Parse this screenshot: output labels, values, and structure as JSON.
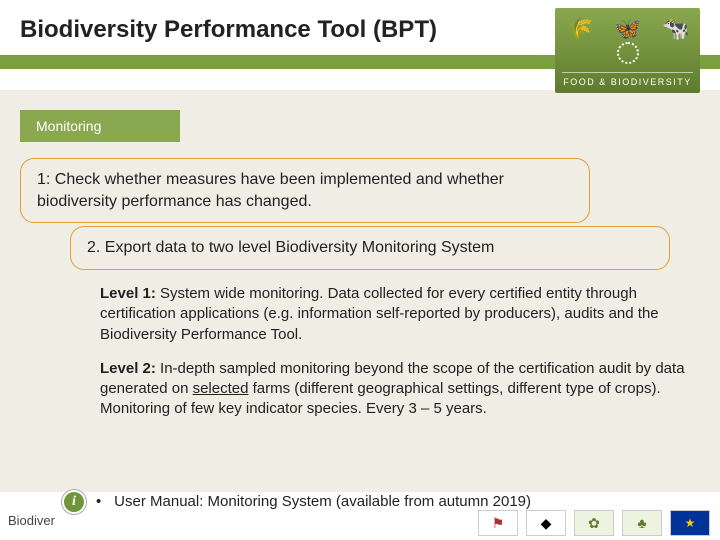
{
  "colors": {
    "page_bg": "#efede4",
    "header_bg": "#ffffff",
    "accent_green": "#7b9e3f",
    "tab_green": "#8aa84f",
    "box_border": "#e2a03a",
    "text": "#222222",
    "logo_gradient_top": "#8aa84f",
    "logo_gradient_bottom": "#5f7b2e"
  },
  "header": {
    "title": "Biodiversity Performance Tool (BPT)",
    "logo_text": "FOOD & BIODIVERSITY"
  },
  "tab": {
    "label": "Monitoring"
  },
  "box1": {
    "text": "1: Check whether measures have been implemented and whether biodiversity performance has changed."
  },
  "box2": {
    "text": "2. Export data to two level Biodiversity Monitoring System"
  },
  "levels": {
    "level1_label": "Level 1:",
    "level1_text": " System wide monitoring. Data collected for every certified entity through certification applications (e.g. information self-reported by producers), audits and the Biodiversity Performance Tool.",
    "level2_label": "Level 2:",
    "level2_pre": " In-depth sampled monitoring beyond the scope of the certification audit by data generated on ",
    "level2_underlined": "selected",
    "level2_post": " farms (different geographical settings,  different type of crops). Monitoring of few key indicator species. Every 3 – 5 years."
  },
  "footer": {
    "left_truncated": "Biodiver",
    "info_glyph": "i",
    "bullet_text": "User Manual: Monitoring System (available from autumn 2019)"
  }
}
